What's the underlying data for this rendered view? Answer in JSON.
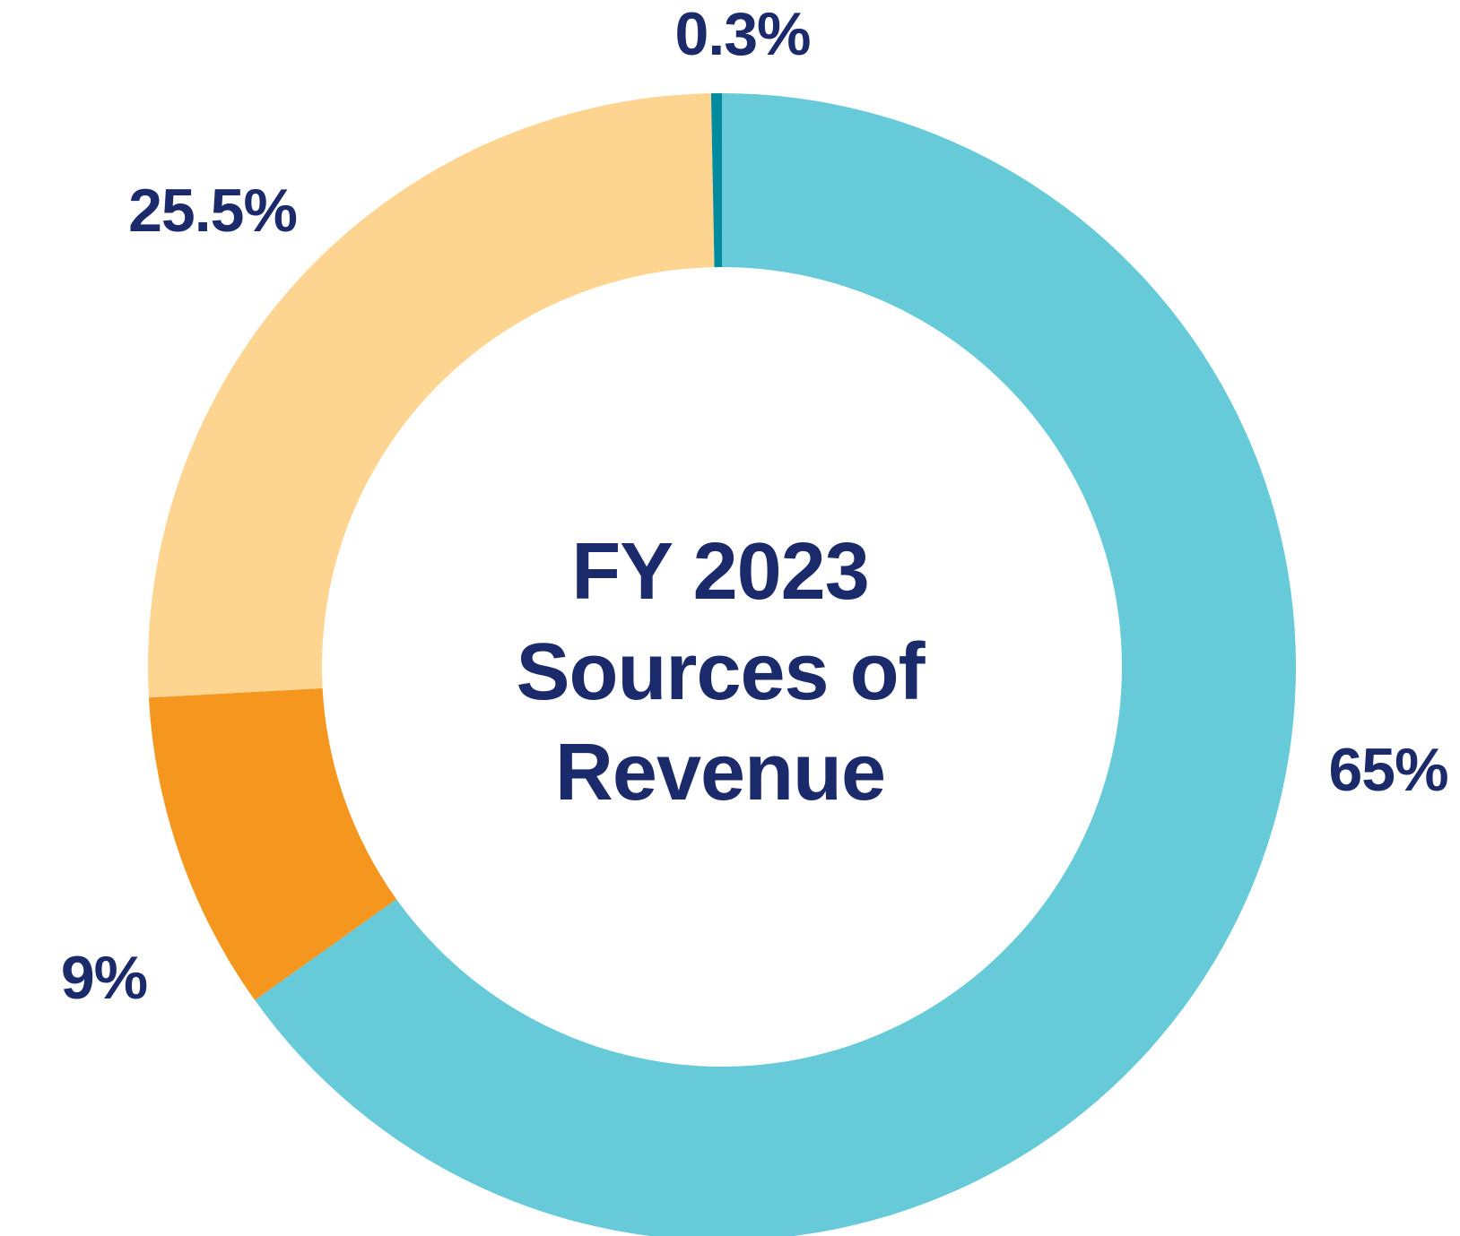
{
  "chart_data": {
    "type": "pie",
    "variant": "donut",
    "title_lines": [
      "FY 2023",
      "Sources of",
      "Revenue"
    ],
    "legend": "none",
    "label_color": "#1b2a6b",
    "slices": [
      {
        "label": "65%",
        "value": 65,
        "color": "#67cad9"
      },
      {
        "label": "9%",
        "value": 9,
        "color": "#f5961f"
      },
      {
        "label": "25.5%",
        "value": 25.5,
        "color": "#fdd591"
      },
      {
        "label": "0.3%",
        "value": 0.3,
        "color": "#008b9e"
      }
    ]
  }
}
